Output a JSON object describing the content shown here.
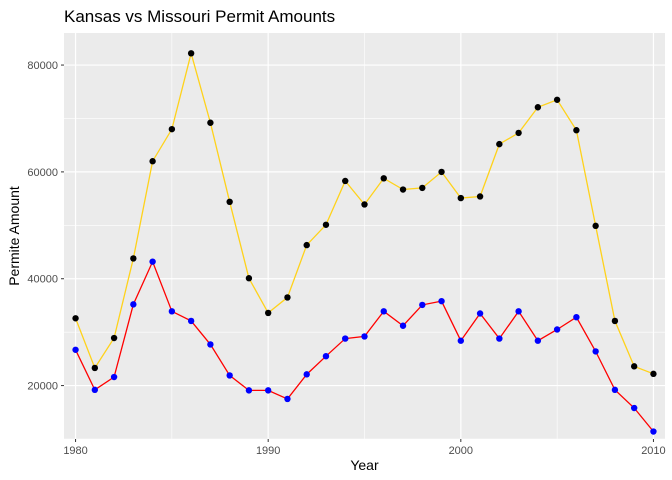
{
  "chart_data": {
    "type": "line",
    "title": "Kansas vs Missouri Permit Amounts",
    "xlabel": "Year",
    "ylabel": "Permite Amount",
    "xlim": [
      1979.4,
      2010.6
    ],
    "ylim": [
      10000,
      86000
    ],
    "x_ticks": [
      1980,
      1990,
      2000,
      2010
    ],
    "x_tick_labels": [
      "1980",
      "1990",
      "2000",
      "2010"
    ],
    "y_ticks": [
      20000,
      40000,
      60000,
      80000
    ],
    "y_tick_labels": [
      "20000",
      "40000",
      "60000",
      "80000"
    ],
    "grid": true,
    "legend": "none",
    "x": [
      1980,
      1981,
      1982,
      1983,
      1984,
      1985,
      1986,
      1987,
      1988,
      1989,
      1990,
      1991,
      1992,
      1993,
      1994,
      1995,
      1996,
      1997,
      1998,
      1999,
      2000,
      2001,
      2002,
      2003,
      2004,
      2005,
      2006,
      2007,
      2008,
      2009,
      2010
    ],
    "series": [
      {
        "line_color": "#FFD21A",
        "point_color": "#000000",
        "values": [
          32600,
          23300,
          28900,
          43800,
          62000,
          68000,
          82200,
          69200,
          54400,
          40100,
          33600,
          36500,
          46300,
          50100,
          58300,
          53900,
          58800,
          56700,
          57000,
          60000,
          55100,
          55400,
          65200,
          67300,
          72100,
          73500,
          67800,
          49900,
          32100,
          23600,
          22200
        ]
      },
      {
        "line_color": "#FF0000",
        "point_color": "#0000FF",
        "values": [
          26700,
          19200,
          21600,
          35200,
          43200,
          33900,
          32100,
          27700,
          21900,
          19100,
          19100,
          17500,
          22100,
          25500,
          28800,
          29200,
          33900,
          31200,
          35100,
          35800,
          28400,
          33500,
          28800,
          33900,
          28400,
          30500,
          32800,
          26400,
          19200,
          15800,
          11400
        ]
      }
    ]
  }
}
